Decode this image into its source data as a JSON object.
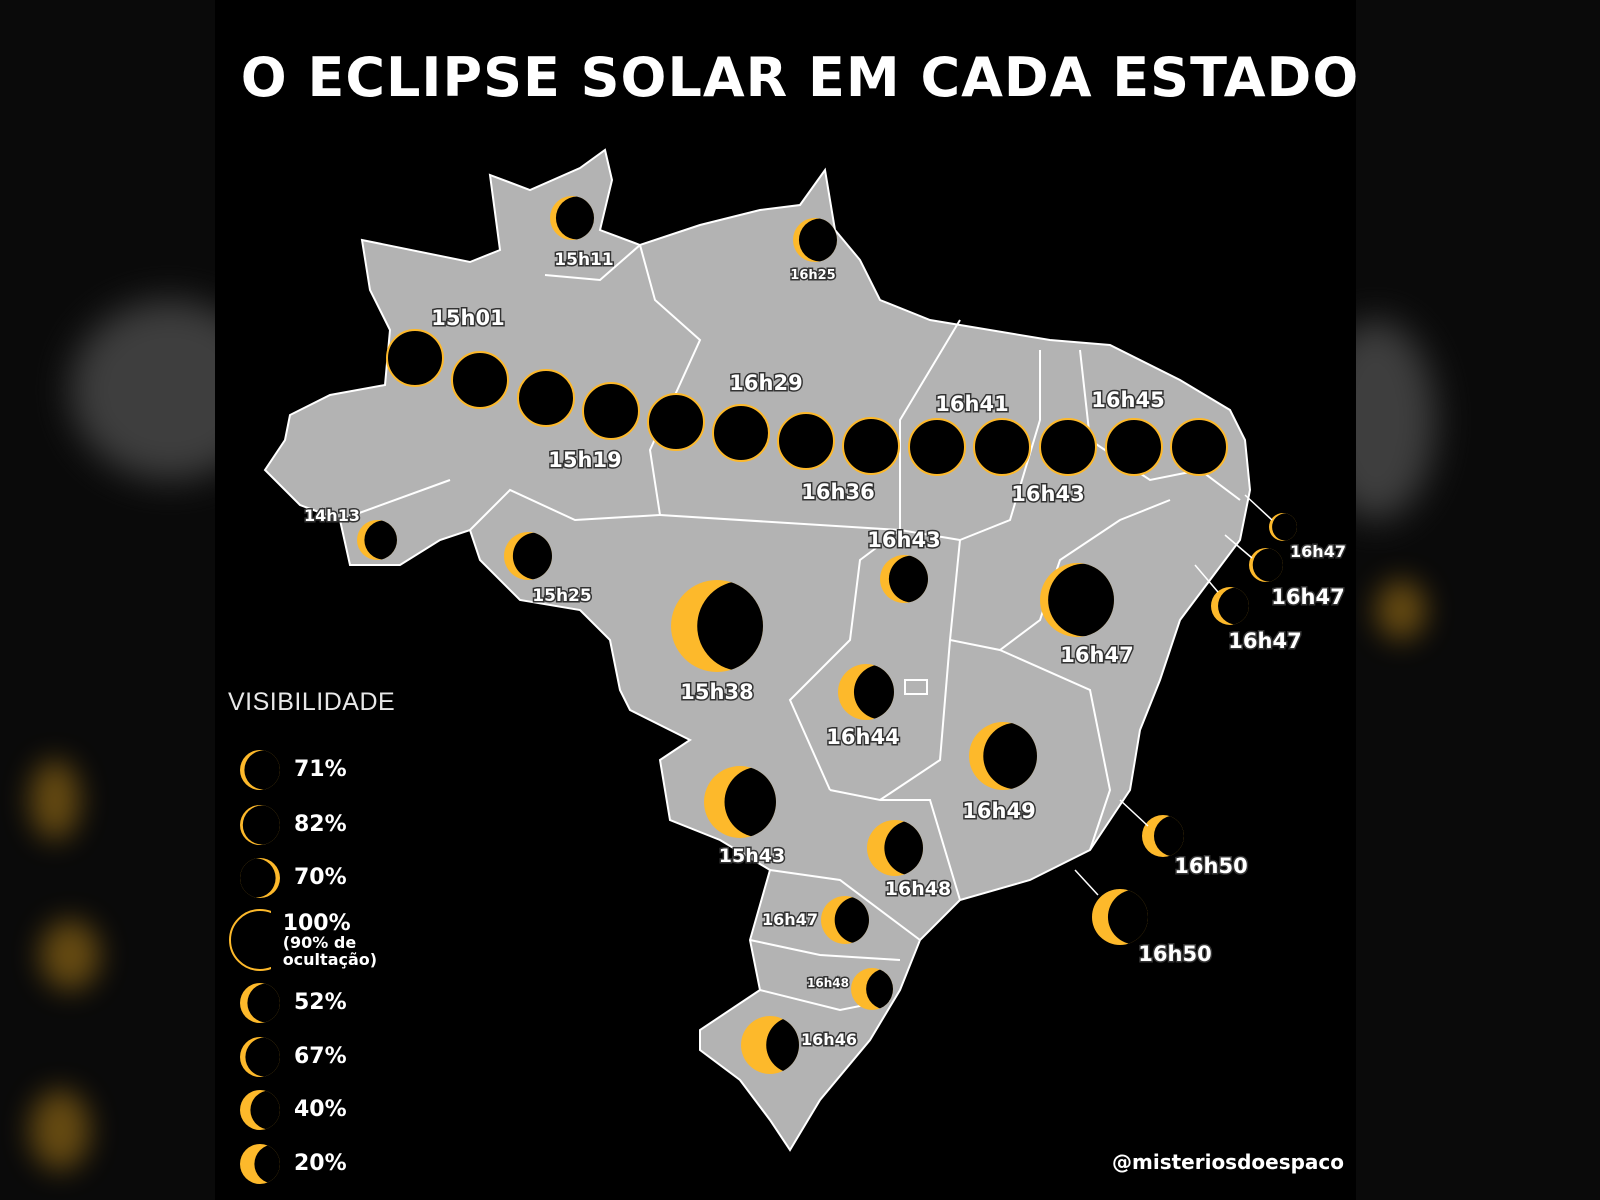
{
  "title": "O ECLIPSE SOLAR EM CADA ESTADO",
  "handle": "@misteriosdoespaco",
  "colors": {
    "sun": "#FDB92B",
    "moon": "#000000",
    "land": "#B3B3B3",
    "border": "#FFFFFF",
    "background": "#000000"
  },
  "legend": {
    "title": "VISIBILIDADE",
    "items": [
      {
        "label": "71%",
        "sub": ""
      },
      {
        "label": "82%",
        "sub": ""
      },
      {
        "label": "70%",
        "sub": ""
      },
      {
        "label": "100%",
        "sub": "(90% de ocultação)"
      },
      {
        "label": "52%",
        "sub": ""
      },
      {
        "label": "67%",
        "sub": ""
      },
      {
        "label": "40%",
        "sub": ""
      },
      {
        "label": "20%",
        "sub": ""
      }
    ]
  },
  "annular_path_times": [
    "15h01",
    "15h19",
    "16h29",
    "16h36",
    "16h41",
    "16h43",
    "16h45"
  ],
  "markers": [
    {
      "time": "15h11"
    },
    {
      "time": "16h25"
    },
    {
      "time": "14h13"
    },
    {
      "time": "15h25"
    },
    {
      "time": "15h38"
    },
    {
      "time": "16h43"
    },
    {
      "time": "16h47"
    },
    {
      "time": "16h44"
    },
    {
      "time": "16h49"
    },
    {
      "time": "15h43"
    },
    {
      "time": "16h48"
    },
    {
      "time": "16h47"
    },
    {
      "time": "16h48"
    },
    {
      "time": "16h46"
    },
    {
      "time": "16h50"
    },
    {
      "time": "16h50"
    },
    {
      "time": "16h47"
    },
    {
      "time": "16h47"
    },
    {
      "time": "16h47"
    }
  ]
}
